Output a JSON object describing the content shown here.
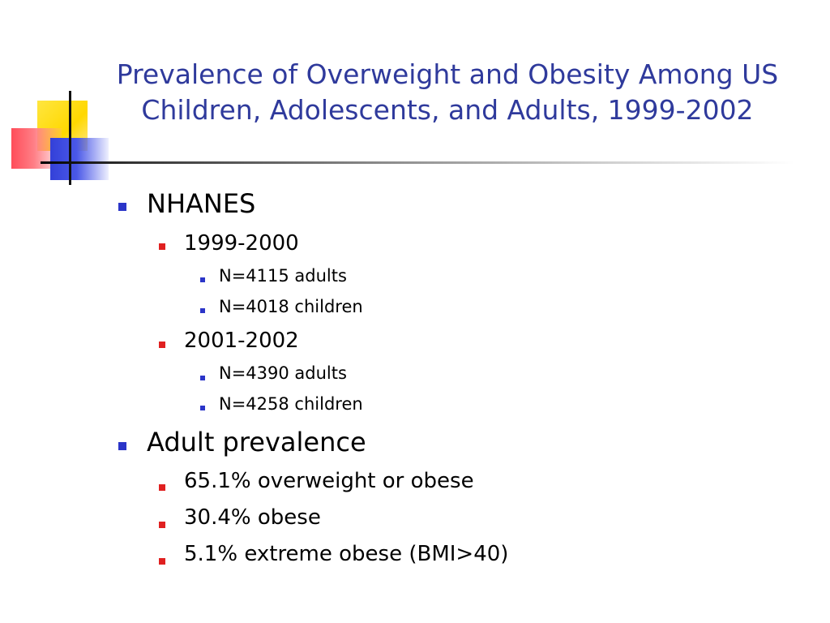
{
  "title": {
    "line1": "Prevalence of Overweight and  Obesity Among US",
    "line2": "Children, Adolescents, and Adults, 1999-2002"
  },
  "colors": {
    "title": "#2f3a9c",
    "bullet_level1": "#2b35c8",
    "bullet_level2": "#e02020",
    "bullet_level3": "#2b35c8"
  },
  "bullets": {
    "nhanes": {
      "label": "NHANES",
      "p1": {
        "label": "1999-2000",
        "adults": "N=4115 adults",
        "children": "N=4018 children"
      },
      "p2": {
        "label": "2001-2002",
        "adults": "N=4390 adults",
        "children": "N=4258 children"
      }
    },
    "adult": {
      "label": "Adult prevalence",
      "overweight": "65.1% overweight or obese",
      "obese": "30.4% obese",
      "extreme": "5.1% extreme obese (BMI>40)"
    }
  }
}
